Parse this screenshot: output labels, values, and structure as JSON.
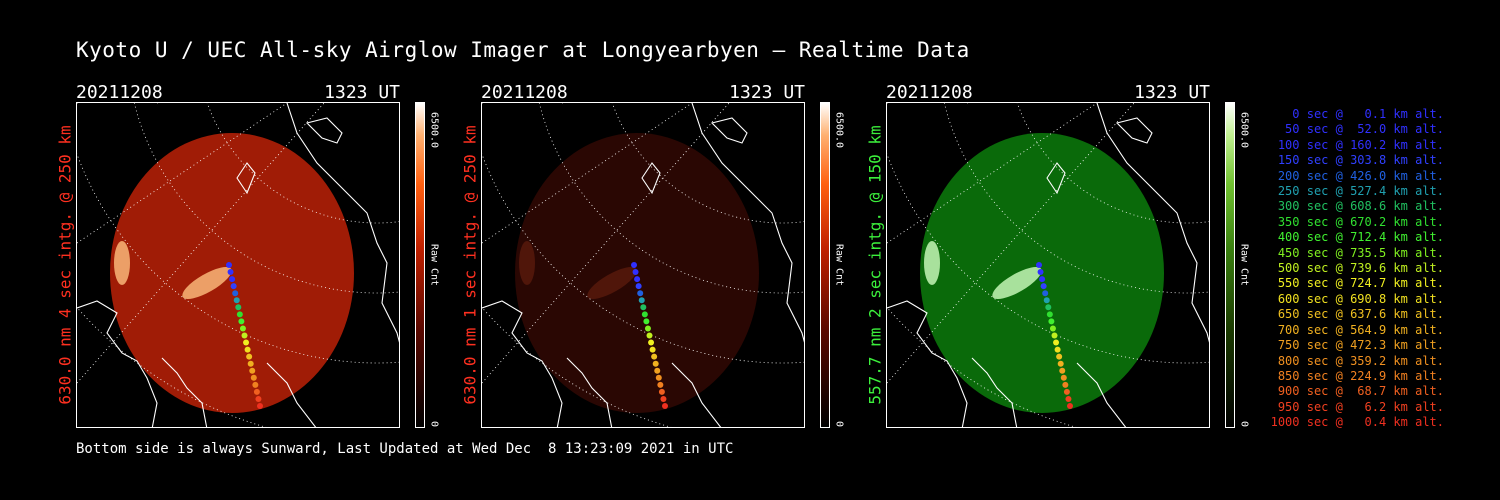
{
  "title": "Kyoto U / UEC All-sky Airglow Imager at Longyearbyen — Realtime Data",
  "panels": [
    {
      "date": "20211208",
      "time": "1323 UT",
      "ylabel": "630.0 nm 4 sec intg. @ 250 km",
      "cbar_max": "6500.0",
      "cbar_min": "0",
      "cbar_unit": "Raw Cnt",
      "label_color": "#ff3020",
      "image_color": "#a01c06"
    },
    {
      "date": "20211208",
      "time": "1323 UT",
      "ylabel": "630.0 nm 1 sec intg. @ 250 km",
      "cbar_max": "6500.0",
      "cbar_min": "0",
      "cbar_unit": "Raw Cnt",
      "label_color": "#ff3020",
      "image_color": "#2a0703"
    },
    {
      "date": "20211208",
      "time": "1323 UT",
      "ylabel": "557.7 nm 2 sec intg. @ 150 km",
      "cbar_max": "6500.0",
      "cbar_min": "0",
      "cbar_unit": "Raw Cnt",
      "label_color": "#3cf03c",
      "image_color": "#0a6a0a"
    }
  ],
  "legend": [
    {
      "text": "   0 sec @   0.1 km alt.",
      "color": "#3030ff"
    },
    {
      "text": "  50 sec @  52.0 km alt.",
      "color": "#3030ff"
    },
    {
      "text": " 100 sec @ 160.2 km alt.",
      "color": "#3030ff"
    },
    {
      "text": " 150 sec @ 303.8 km alt.",
      "color": "#3040ff"
    },
    {
      "text": " 200 sec @ 426.0 km alt.",
      "color": "#2060e0"
    },
    {
      "text": " 250 sec @ 527.4 km alt.",
      "color": "#20a0b0"
    },
    {
      "text": " 300 sec @ 608.6 km alt.",
      "color": "#20c060"
    },
    {
      "text": " 350 sec @ 670.2 km alt.",
      "color": "#30e030"
    },
    {
      "text": " 400 sec @ 712.4 km alt.",
      "color": "#40f030"
    },
    {
      "text": " 450 sec @ 735.5 km alt.",
      "color": "#80f020"
    },
    {
      "text": " 500 sec @ 739.6 km alt.",
      "color": "#c0f020"
    },
    {
      "text": " 550 sec @ 724.7 km alt.",
      "color": "#f0f020"
    },
    {
      "text": " 600 sec @ 690.8 km alt.",
      "color": "#f0e020"
    },
    {
      "text": " 650 sec @ 637.6 km alt.",
      "color": "#f0c020"
    },
    {
      "text": " 700 sec @ 564.9 km alt.",
      "color": "#f0b020"
    },
    {
      "text": " 750 sec @ 472.3 km alt.",
      "color": "#f0a020"
    },
    {
      "text": " 800 sec @ 359.2 km alt.",
      "color": "#f09020"
    },
    {
      "text": " 850 sec @ 224.9 km alt.",
      "color": "#f08020"
    },
    {
      "text": " 900 sec @  68.7 km alt.",
      "color": "#f06020"
    },
    {
      "text": " 950 sec @   6.2 km alt.",
      "color": "#f04020"
    },
    {
      "text": "1000 sec @   0.4 km alt.",
      "color": "#f03020"
    }
  ],
  "footer": "Bottom side is always Sunward, Last Updated at Wed Dec  8 13:23:09 2021 in UTC"
}
